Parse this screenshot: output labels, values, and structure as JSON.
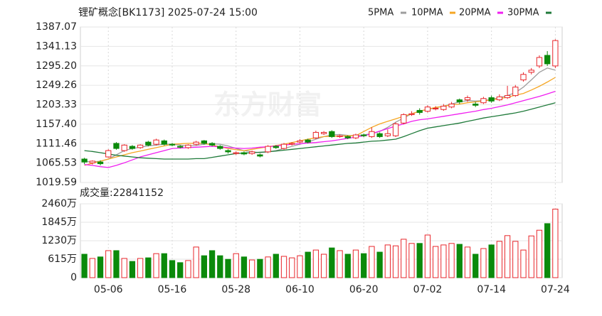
{
  "chart_data": {
    "type": "candlestick",
    "title": "锂矿概念[BK1173] 2025-07-24 15:00",
    "watermark": "东方财富",
    "categories": [
      null,
      null,
      null,
      "05-06",
      null,
      null,
      null,
      null,
      null,
      null,
      null,
      "05-16",
      null,
      null,
      null,
      null,
      null,
      null,
      null,
      "05-28",
      null,
      null,
      null,
      null,
      null,
      null,
      null,
      "06-10",
      null,
      null,
      null,
      null,
      null,
      null,
      null,
      "06-20",
      null,
      null,
      null,
      null,
      null,
      null,
      null,
      "07-02",
      null,
      null,
      null,
      null,
      null,
      null,
      null,
      "07-14",
      null,
      null,
      null,
      null,
      null,
      null,
      null,
      "07-24"
    ],
    "open": [
      1075,
      1066,
      1068,
      1080,
      1112,
      1095,
      1105,
      1102,
      1115,
      1110,
      1118,
      1110,
      1105,
      1102,
      1110,
      1118,
      1112,
      1105,
      1095,
      1088,
      1090,
      1088,
      1085,
      1092,
      1105,
      1100,
      1110,
      1115,
      1120,
      1125,
      1135,
      1140,
      1128,
      1128,
      1125,
      1132,
      1128,
      1135,
      1130,
      1130,
      1160,
      1180,
      1190,
      1188,
      1195,
      1192,
      1198,
      1215,
      1215,
      1205,
      1208,
      1220,
      1215,
      1220,
      1225,
      1262,
      1280,
      1295,
      1320,
      1295
    ],
    "high": [
      1078,
      1072,
      1072,
      1098,
      1115,
      1110,
      1108,
      1110,
      1118,
      1123,
      1121,
      1113,
      1108,
      1110,
      1118,
      1120,
      1115,
      1108,
      1098,
      1093,
      1093,
      1095,
      1088,
      1108,
      1108,
      1113,
      1115,
      1122,
      1123,
      1142,
      1141,
      1143,
      1133,
      1131,
      1135,
      1135,
      1150,
      1138,
      1145,
      1162,
      1183,
      1188,
      1195,
      1202,
      1200,
      1205,
      1210,
      1218,
      1225,
      1210,
      1222,
      1225,
      1228,
      1248,
      1250,
      1280,
      1290,
      1320,
      1330,
      1358
    ],
    "low": [
      1063,
      1062,
      1060,
      1078,
      1097,
      1092,
      1097,
      1099,
      1105,
      1107,
      1107,
      1105,
      1100,
      1099,
      1107,
      1109,
      1105,
      1097,
      1088,
      1085,
      1084,
      1085,
      1079,
      1089,
      1099,
      1097,
      1107,
      1112,
      1112,
      1122,
      1132,
      1125,
      1125,
      1122,
      1122,
      1127,
      1125,
      1125,
      1127,
      1127,
      1157,
      1177,
      1180,
      1185,
      1190,
      1189,
      1195,
      1205,
      1210,
      1198,
      1205,
      1208,
      1212,
      1217,
      1222,
      1258,
      1275,
      1290,
      1295,
      1290
    ],
    "close": [
      1068,
      1070,
      1064,
      1095,
      1100,
      1108,
      1100,
      1108,
      1108,
      1120,
      1110,
      1108,
      1103,
      1108,
      1115,
      1112,
      1108,
      1100,
      1092,
      1090,
      1087,
      1092,
      1082,
      1105,
      1102,
      1110,
      1112,
      1118,
      1115,
      1138,
      1138,
      1128,
      1130,
      1125,
      1132,
      1130,
      1140,
      1128,
      1135,
      1158,
      1180,
      1182,
      1185,
      1198,
      1195,
      1200,
      1205,
      1210,
      1220,
      1202,
      1218,
      1212,
      1222,
      1225,
      1245,
      1275,
      1285,
      1315,
      1300,
      1355
    ],
    "up_color": "#e8262b",
    "down_color": "#0b8a0b",
    "ylim": [
      1019.59,
      1387.07
    ],
    "yticks": [
      1019.59,
      1065.53,
      1111.46,
      {
        "value": 1157.4,
        "label": "1157.40"
      },
      1203.33,
      1249.26,
      {
        "value": 1295.2,
        "label": "1295.20"
      },
      1341.13,
      1387.07
    ],
    "grid": true,
    "series": [
      {
        "name": "5PMA",
        "color": "#9e9e9e",
        "values": [
          1070,
          1068,
          1070,
          1075,
          1085,
          1095,
          1100,
          1103,
          1106,
          1108,
          1110,
          1110,
          1108,
          1106,
          1107,
          1110,
          1111,
          1110,
          1106,
          1100,
          1095,
          1092,
          1090,
          1092,
          1095,
          1100,
          1105,
          1110,
          1115,
          1122,
          1128,
          1132,
          1133,
          1131,
          1130,
          1132,
          1135,
          1140,
          1150,
          1162,
          1172,
          1182,
          1188,
          1192,
          1196,
          1200,
          1205,
          1210,
          1213,
          1212,
          1213,
          1216,
          1220,
          1225,
          1232,
          1245,
          1262,
          1280,
          1290,
          1285
        ]
      },
      {
        "name": "10PMA",
        "color": "#f5a623",
        "values": [
          1060,
          1065,
          1070,
          1075,
          1080,
          1085,
          1090,
          1094,
          1098,
          1102,
          1106,
          1110,
          1111,
          1112,
          1112,
          1112,
          1108,
          1104,
          1100,
          1097,
          1095,
          1098,
          1101,
          1104,
          1107,
          1110,
          1114,
          1118,
          1122,
          1125,
          1128,
          1129,
          1129,
          1130,
          1130,
          1140,
          1150,
          1158,
          1164,
          1170,
          1176,
          1182,
          1188,
          1193,
          1197,
          1200,
          1203,
          1205,
          1208,
          1210,
          1212,
          1215,
          1218,
          1221,
          1226,
          1230,
          1238,
          1247,
          1257,
          1268
        ]
      },
      {
        "name": "20PMA",
        "color": "#f01ef0",
        "values": [
          1062,
          1060,
          1057,
          1055,
          1060,
          1066,
          1073,
          1080,
          1085,
          1090,
          1095,
          1100,
          1101,
          1102,
          1103,
          1104,
          1105,
          1104,
          1102,
          1101,
          1100,
          1101,
          1103,
          1104,
          1106,
          1108,
          1110,
          1111,
          1113,
          1114,
          1116,
          1118,
          1121,
          1124,
          1127,
          1130,
          1135,
          1141,
          1147,
          1153,
          1158,
          1164,
          1168,
          1170,
          1173,
          1176,
          1179,
          1182,
          1185,
          1188,
          1192,
          1195,
          1199,
          1203,
          1208,
          1213,
          1218,
          1223,
          1229,
          1235
        ]
      },
      {
        "name": "30PMA",
        "color": "#1f7a3a",
        "values": [
          1095,
          1093,
          1090,
          1087,
          1084,
          1082,
          1080,
          1078,
          1077,
          1076,
          1075,
          1075,
          1075,
          1075,
          1076,
          1076,
          1079,
          1082,
          1085,
          1088,
          1089,
          1090,
          1091,
          1092,
          1094,
          1096,
          1098,
          1100,
          1102,
          1104,
          1106,
          1108,
          1110,
          1112,
          1113,
          1115,
          1117,
          1118,
          1120,
          1122,
          1128,
          1135,
          1142,
          1148,
          1151,
          1154,
          1157,
          1160,
          1164,
          1168,
          1172,
          1175,
          1178,
          1181,
          1184,
          1188,
          1193,
          1198,
          1203,
          1208
        ]
      }
    ],
    "volume": {
      "title": "成交量:22841152",
      "values": [
        780,
        640,
        690,
        900,
        900,
        640,
        540,
        640,
        660,
        800,
        800,
        570,
        500,
        570,
        1020,
        730,
        900,
        730,
        610,
        800,
        690,
        590,
        610,
        690,
        780,
        710,
        660,
        730,
        850,
        920,
        780,
        990,
        900,
        780,
        920,
        800,
        1040,
        850,
        1090,
        1060,
        1280,
        1140,
        1140,
        1420,
        1040,
        1090,
        1140,
        1110,
        1020,
        780,
        970,
        1090,
        1210,
        1400,
        1210,
        920,
        1390,
        1580,
        1800,
        2284
      ],
      "ylim": [
        0,
        2460
      ],
      "yticks": [
        0,
        {
          "value": 615,
          "label": "615万"
        },
        {
          "value": 1230,
          "label": "1230万"
        },
        {
          "value": 1845,
          "label": "1845万"
        },
        {
          "value": 2460,
          "label": "2460万"
        }
      ]
    }
  }
}
